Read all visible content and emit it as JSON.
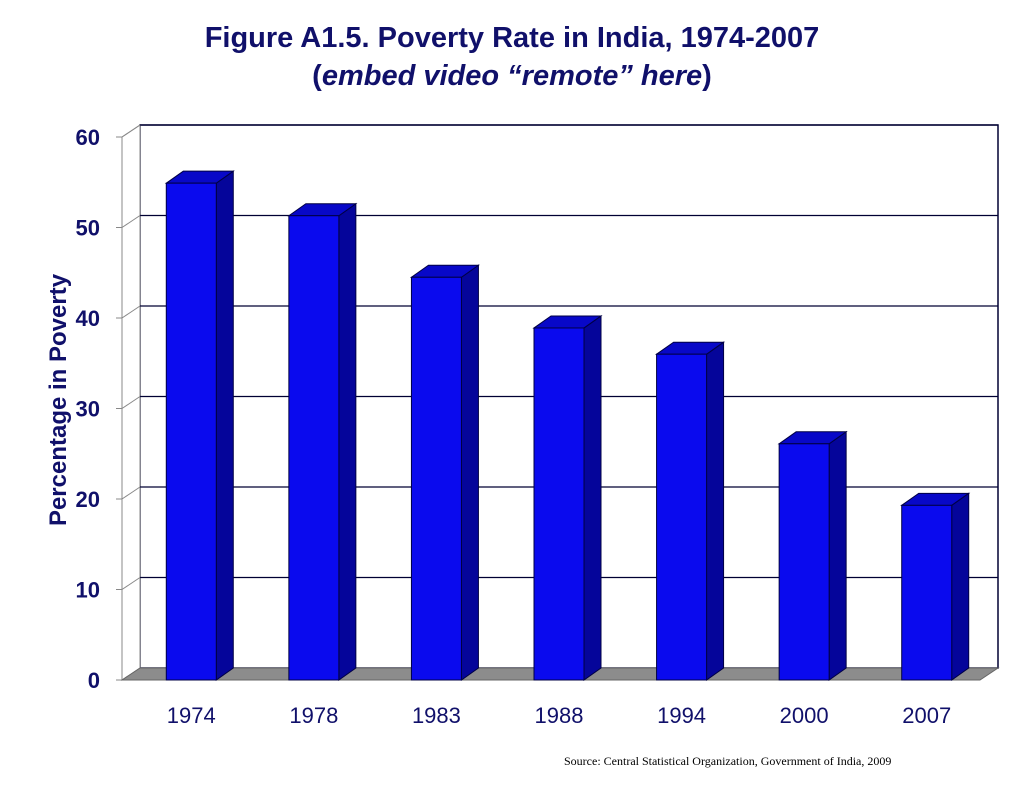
{
  "chart_data": {
    "type": "bar",
    "title": "Figure A1.5.  Poverty Rate in India, 1974-2007",
    "subtitle_open": "(",
    "subtitle_italic": "embed video “remote” here",
    "subtitle_close": ")",
    "ylabel": "Percentage in Poverty",
    "xlabel": "",
    "categories": [
      "1974",
      "1978",
      "1983",
      "1988",
      "1994",
      "2000",
      "2007"
    ],
    "values": [
      54.9,
      51.3,
      44.5,
      38.9,
      36.0,
      26.1,
      19.3
    ],
    "ylim": [
      0,
      60
    ],
    "yticks": [
      "0",
      "10",
      "20",
      "30",
      "40",
      "50",
      "60"
    ],
    "grid": true,
    "three_d": true,
    "colors": {
      "bar_front": "#0a0aee",
      "bar_side": "#05059a",
      "bar_top": "#0808c8",
      "floor": "#8c8c8c",
      "text": "#10106a",
      "axis": "#000033"
    }
  },
  "source": "Source: Central Statistical Organization, Government of India, 2009"
}
